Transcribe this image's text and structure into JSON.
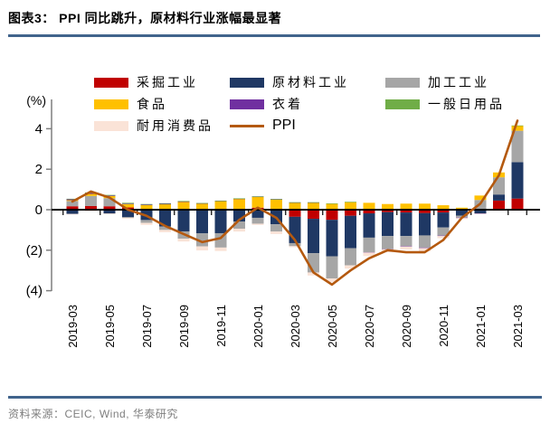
{
  "title": "图表3：  PPI 同比跳升，原材料行业涨幅最显著",
  "source": {
    "label": "资料来源：",
    "text": "CEIC, Wind, 华泰研究"
  },
  "accent_rule_color": "#41648C",
  "legend": {
    "items": [
      {
        "id": "mining",
        "label": "采掘工业",
        "color": "#C00000",
        "type": "box"
      },
      {
        "id": "raw-materials",
        "label": "原材料工业",
        "color": "#1F3864",
        "type": "box"
      },
      {
        "id": "processing",
        "label": "加工工业",
        "color": "#A6A6A6",
        "type": "box"
      },
      {
        "id": "food",
        "label": "食品",
        "color": "#FFC000",
        "type": "box"
      },
      {
        "id": "clothing",
        "label": "衣着",
        "color": "#7030A0",
        "type": "box"
      },
      {
        "id": "general-daily-goods",
        "label": "一般日用品",
        "color": "#70AD47",
        "type": "box"
      },
      {
        "id": "durable-consumer-goods",
        "label": "耐用消费品",
        "color": "#FAE3D7",
        "type": "box"
      },
      {
        "id": "ppi",
        "label": "PPI",
        "color": "#B4590F",
        "type": "line"
      }
    ]
  },
  "chart_data": {
    "type": "bar",
    "subtype": "stacked-bar-with-line-overlay",
    "title": "",
    "xlabel": "",
    "ylabel": "(%)",
    "ylim": [
      -4,
      5
    ],
    "yticks": [
      4,
      2,
      0,
      -2,
      -4
    ],
    "ytick_labels": [
      "4",
      "2",
      "0",
      "(2)",
      "(4)"
    ],
    "grid": false,
    "legend_position": "top",
    "categories": [
      "2019-03",
      "2019-04",
      "2019-05",
      "2019-06",
      "2019-07",
      "2019-08",
      "2019-09",
      "2019-10",
      "2019-11",
      "2019-12",
      "2020-01",
      "2020-02",
      "2020-03",
      "2020-04",
      "2020-05",
      "2020-06",
      "2020-07",
      "2020-08",
      "2020-09",
      "2020-10",
      "2020-11",
      "2020-12",
      "2021-01",
      "2021-02",
      "2021-03"
    ],
    "x_tick_labels": [
      "2019-03",
      "2019-05",
      "2019-07",
      "2019-09",
      "2019-11",
      "2020-01",
      "2020-03",
      "2020-05",
      "2020-07",
      "2020-09",
      "2020-11",
      "2021-01",
      "2021-03"
    ],
    "series": [
      {
        "id": "mining",
        "name": "采掘工业",
        "color": "#C00000",
        "values": [
          0.17,
          0.18,
          0.17,
          0.11,
          0.04,
          0.01,
          0.02,
          -0.03,
          -0.02,
          -0.01,
          0.1,
          -0.03,
          -0.35,
          -0.45,
          -0.5,
          -0.3,
          -0.18,
          -0.12,
          -0.14,
          -0.17,
          -0.14,
          -0.04,
          0.03,
          0.45,
          0.55
        ]
      },
      {
        "id": "raw-materials",
        "name": "原材料工业",
        "color": "#1F3864",
        "values": [
          -0.21,
          -0.04,
          -0.19,
          -0.37,
          -0.51,
          -0.83,
          -1.07,
          -1.14,
          -1.14,
          -0.57,
          -0.4,
          -0.69,
          -1.3,
          -1.7,
          -1.8,
          -1.6,
          -1.2,
          -1.18,
          -1.16,
          -1.1,
          -0.74,
          -0.25,
          -0.18,
          0.3,
          1.8
        ]
      },
      {
        "id": "processing",
        "name": "加工工业",
        "color": "#A6A6A6",
        "values": [
          0.26,
          0.5,
          0.4,
          -0.03,
          -0.14,
          -0.17,
          -0.36,
          -0.64,
          -0.71,
          -0.36,
          -0.29,
          -0.36,
          -0.15,
          -0.95,
          -1.1,
          -0.85,
          -0.72,
          -0.64,
          -0.5,
          -0.6,
          -0.4,
          -0.1,
          0.45,
          0.85,
          1.55
        ]
      },
      {
        "id": "food",
        "name": "食品",
        "color": "#FFC000",
        "values": [
          0.04,
          0.1,
          0.1,
          0.17,
          0.19,
          0.26,
          0.38,
          0.31,
          0.43,
          0.54,
          0.54,
          0.51,
          0.35,
          0.35,
          0.3,
          0.38,
          0.34,
          0.28,
          0.3,
          0.3,
          0.22,
          0.1,
          0.22,
          0.24,
          0.25
        ]
      },
      {
        "id": "clothing",
        "name": "衣着",
        "color": "#7030A0",
        "values": [
          0.05,
          0.05,
          0.03,
          0.02,
          0.02,
          0.02,
          0.01,
          0.01,
          0.01,
          0.01,
          0.01,
          0.01,
          0.01,
          0.01,
          0.0,
          0.0,
          -0.01,
          -0.01,
          -0.02,
          -0.02,
          -0.02,
          -0.02,
          -0.01,
          -0.01,
          0.0
        ]
      },
      {
        "id": "general-daily-goods",
        "name": "一般日用品",
        "color": "#70AD47",
        "values": [
          0.02,
          0.02,
          0.03,
          0.04,
          0.03,
          0.03,
          0.02,
          0.01,
          0.01,
          0.01,
          0.01,
          0.01,
          0.01,
          0.01,
          0.01,
          0.01,
          0.0,
          0.0,
          0.0,
          0.0,
          0.0,
          0.0,
          0.0,
          0.0,
          0.01
        ]
      },
      {
        "id": "durable-consumer-goods",
        "name": "耐用消费品",
        "color": "#FAE3D7",
        "values": [
          -0.02,
          -0.02,
          -0.04,
          -0.04,
          -0.1,
          -0.11,
          -0.14,
          -0.2,
          -0.17,
          -0.14,
          -0.06,
          -0.12,
          -0.05,
          -0.15,
          -0.18,
          -0.16,
          -0.18,
          -0.15,
          -0.14,
          -0.17,
          -0.11,
          -0.05,
          -0.02,
          -0.02,
          -0.02
        ]
      }
    ],
    "line": {
      "id": "ppi",
      "name": "PPI",
      "color": "#B4590F",
      "values": [
        0.4,
        0.9,
        0.6,
        0.0,
        -0.3,
        -0.8,
        -1.2,
        -1.6,
        -1.4,
        -0.5,
        0.1,
        -0.4,
        -1.5,
        -3.1,
        -3.7,
        -3.0,
        -2.4,
        -2.0,
        -2.1,
        -2.1,
        -1.5,
        -0.4,
        0.3,
        1.7,
        4.4
      ]
    }
  }
}
